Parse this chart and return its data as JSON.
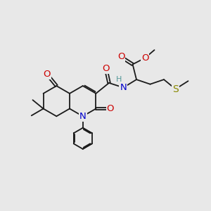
{
  "bg_color": "#e8e8e8",
  "bond_color": "#1a1a1a",
  "atom_colors": {
    "O": "#cc0000",
    "N": "#0000cc",
    "S": "#888800",
    "H": "#559999",
    "C": "#1a1a1a"
  },
  "bond_lw": 1.3,
  "font_size": 9.5,
  "font_size_small": 8.0
}
